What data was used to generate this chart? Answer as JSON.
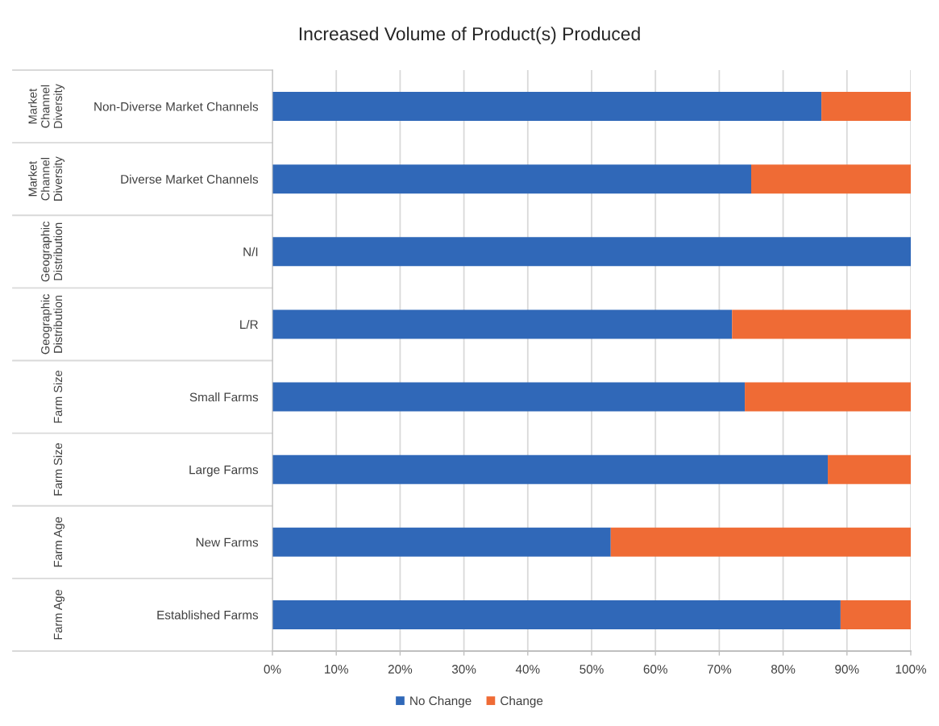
{
  "chart_data": {
    "type": "bar",
    "orientation": "horizontal",
    "stacked": true,
    "title": "Increased Volume of Product(s) Produced",
    "categories": [
      "Non-Diverse Market Channels",
      "Diverse Market Channels",
      "N/I",
      "L/R",
      "Small Farms",
      "Large Farms",
      "New Farms",
      "Established Farms"
    ],
    "series": [
      {
        "name": "No Change",
        "color": "#3068b8",
        "values": [
          86,
          75,
          100,
          72,
          74,
          87,
          53,
          89
        ]
      },
      {
        "name": "Change",
        "color": "#ef6b35",
        "values": [
          14,
          25,
          0,
          28,
          26,
          13,
          47,
          11
        ]
      }
    ],
    "xlim": [
      0,
      100
    ],
    "xticks": [
      {
        "value": 0,
        "label": "0%"
      },
      {
        "value": 10,
        "label": "10%"
      },
      {
        "value": 20,
        "label": "20%"
      },
      {
        "value": 30,
        "label": "30%"
      },
      {
        "value": 40,
        "label": "40%"
      },
      {
        "value": 50,
        "label": "50%"
      },
      {
        "value": 60,
        "label": "60%"
      },
      {
        "value": 70,
        "label": "70%"
      },
      {
        "value": 80,
        "label": "80%"
      },
      {
        "value": 90,
        "label": "90%"
      },
      {
        "value": 100,
        "label": "100%"
      }
    ],
    "grid": "x",
    "legend": "bottom",
    "annotations": [
      "Market Channel Diversity",
      "Market Channel Diversity",
      "Geographic Distribution",
      "Geographic Distribution",
      "Farm Size",
      "Farm Size",
      "Farm Age",
      "Farm Age"
    ]
  }
}
